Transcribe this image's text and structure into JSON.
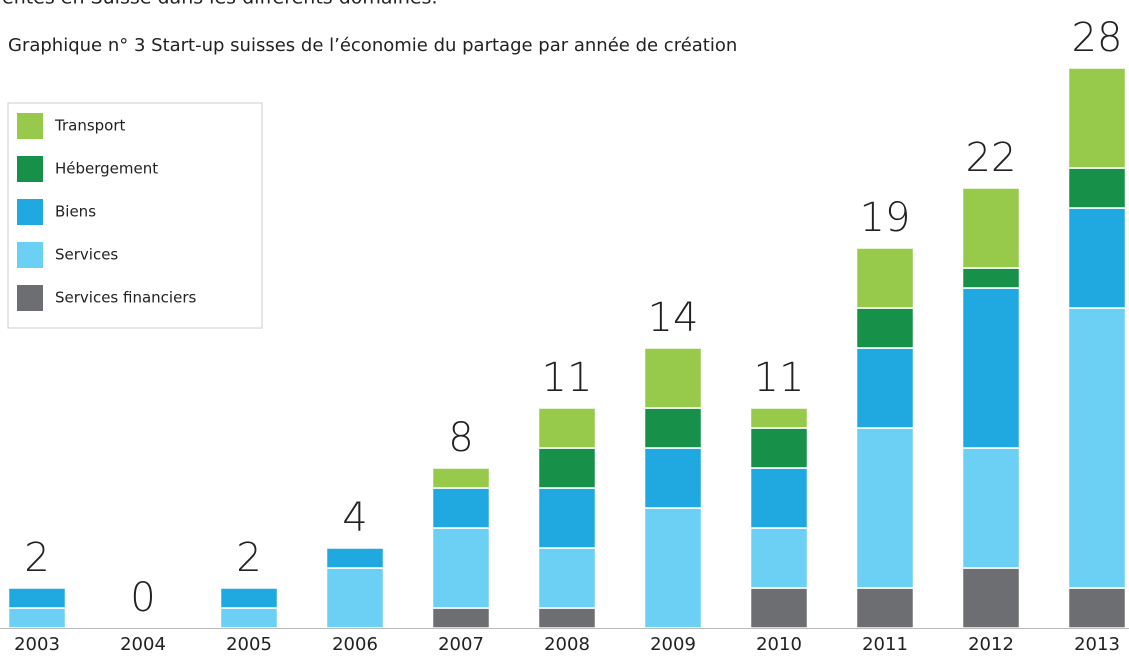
{
  "chart_data": {
    "type": "stacked_bar",
    "heading_fragment": "entes en Suisse dans les différents domaines.",
    "title": "Graphique n° 3 Start-up suisses de l’économie du partage par année de création",
    "categories": [
      "2003",
      "2004",
      "2005",
      "2006",
      "2007",
      "2008",
      "2009",
      "2010",
      "2011",
      "2012",
      "2013"
    ],
    "series": [
      {
        "name": "Services financiers",
        "color": "#6d6e71",
        "values": [
          0,
          0,
          0,
          0,
          1,
          1,
          0,
          2,
          2,
          3,
          2
        ]
      },
      {
        "name": "Services",
        "color": "#6ccff4",
        "values": [
          1,
          0,
          1,
          3,
          4,
          3,
          6,
          3,
          8,
          6,
          14
        ]
      },
      {
        "name": "Biens",
        "color": "#20a8e0",
        "values": [
          1,
          0,
          1,
          1,
          2,
          3,
          3,
          3,
          4,
          8,
          5
        ]
      },
      {
        "name": "Hébergement",
        "color": "#17904a",
        "values": [
          0,
          0,
          0,
          0,
          0,
          2,
          2,
          2,
          2,
          1,
          2
        ]
      },
      {
        "name": "Transport",
        "color": "#97c94a",
        "values": [
          0,
          0,
          0,
          0,
          1,
          2,
          3,
          1,
          3,
          4,
          5
        ]
      }
    ],
    "totals": [
      2,
      0,
      2,
      4,
      8,
      11,
      14,
      11,
      19,
      22,
      28
    ]
  }
}
